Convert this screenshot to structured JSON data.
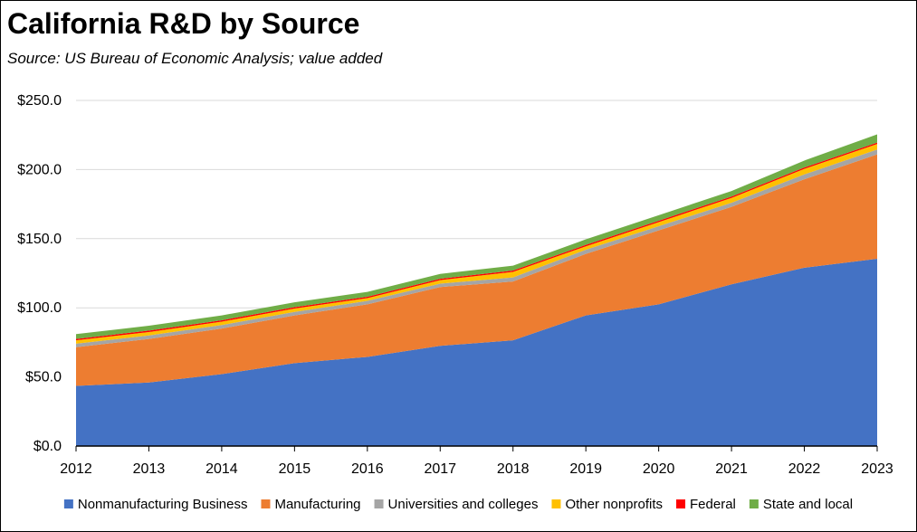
{
  "title": "California R&D by Source",
  "subtitle": "Source:  US Bureau of Economic Analysis; value added",
  "chart_data": {
    "type": "area",
    "stacked": true,
    "title": "California R&D by Source",
    "subtitle": "Source:  US Bureau of Economic Analysis; value added",
    "xlabel": "",
    "ylabel": "",
    "x": [
      2012,
      2013,
      2014,
      2015,
      2016,
      2017,
      2018,
      2019,
      2020,
      2021,
      2022,
      2023
    ],
    "ylim": [
      0,
      250
    ],
    "y_ticks": [
      0,
      50,
      100,
      150,
      200,
      250
    ],
    "y_tick_labels": [
      "$0.0",
      "$50.0",
      "$100.0",
      "$150.0",
      "$200.0",
      "$250.0"
    ],
    "grid": "horizontal",
    "legend_position": "bottom",
    "series": [
      {
        "name": "Nonmanufacturing Business",
        "color": "#4472C4",
        "values": [
          43.5,
          46.0,
          52.0,
          60.0,
          64.5,
          72.5,
          76.5,
          94.5,
          102.5,
          117.0,
          129.0,
          135.5
        ]
      },
      {
        "name": "Manufacturing",
        "color": "#ED7D31",
        "values": [
          28.0,
          31.5,
          33.0,
          34.5,
          38.0,
          42.5,
          42.5,
          44.5,
          53.5,
          56.0,
          64.0,
          75.5
        ]
      },
      {
        "name": "Universities and colleges",
        "color": "#A5A5A5",
        "values": [
          2.5,
          2.5,
          2.5,
          2.5,
          2.5,
          2.5,
          3.0,
          3.0,
          3.0,
          3.0,
          3.5,
          3.5
        ]
      },
      {
        "name": "Other nonprofits",
        "color": "#FFC000",
        "values": [
          2.5,
          2.5,
          2.5,
          2.5,
          2.0,
          2.5,
          4.0,
          2.5,
          3.0,
          3.5,
          4.0,
          4.0
        ]
      },
      {
        "name": "Federal",
        "color": "#FF0000",
        "values": [
          1.0,
          1.0,
          1.0,
          1.0,
          1.0,
          1.0,
          1.0,
          1.0,
          1.0,
          1.0,
          1.0,
          1.0
        ]
      },
      {
        "name": "State and local",
        "color": "#70AD47",
        "values": [
          3.5,
          3.5,
          3.5,
          3.5,
          3.5,
          3.5,
          3.5,
          4.0,
          4.0,
          4.0,
          5.0,
          6.0
        ]
      }
    ]
  }
}
